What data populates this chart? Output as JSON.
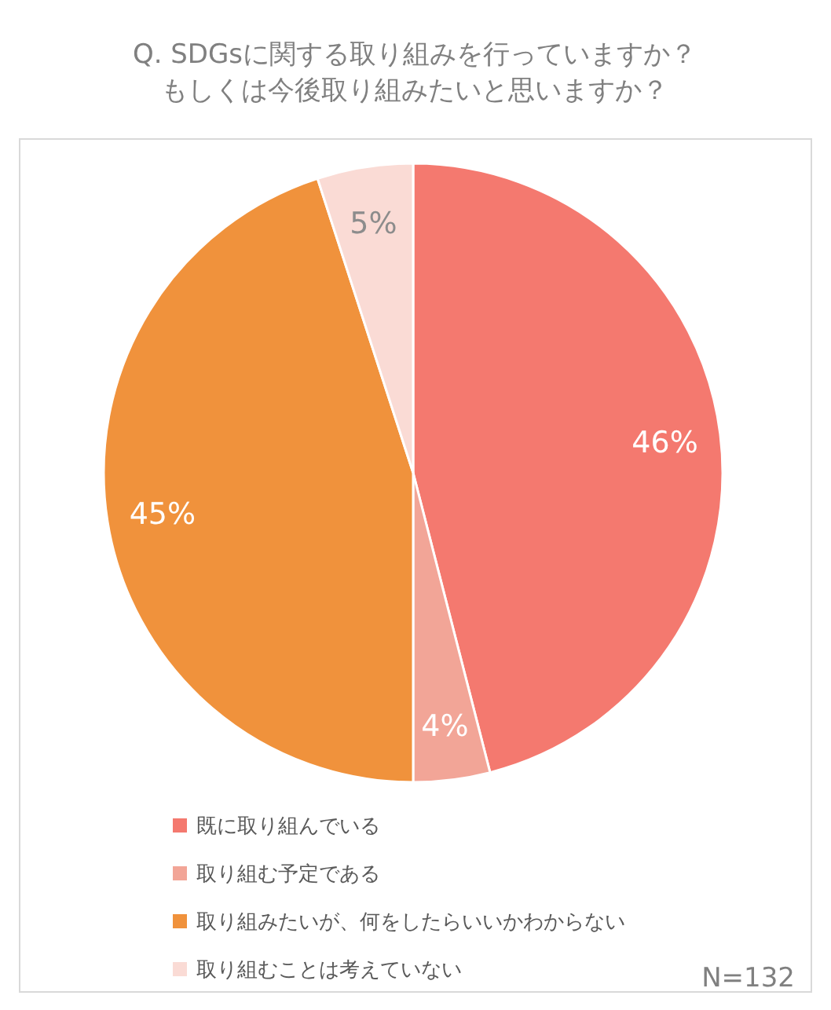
{
  "chart_data": {
    "type": "pie",
    "title": "Q. SDGsに関する取り組みを行っていますか？",
    "subtitle": "もしくは今後取り組みたいと思いますか？",
    "categories": [
      "既に取り組んでいる",
      "取り組む予定である",
      "取り組みたいが、何をしたらいいかわからない",
      "取り組むことは考えていない"
    ],
    "values": [
      46,
      4,
      45,
      5
    ],
    "colors": [
      "#f4796f",
      "#f2a597",
      "#f0923c",
      "#fadbd5"
    ],
    "value_labels": [
      "46%",
      "4%",
      "45%",
      "5%"
    ],
    "legend": "bottom",
    "annotations": [
      "N=132"
    ]
  }
}
